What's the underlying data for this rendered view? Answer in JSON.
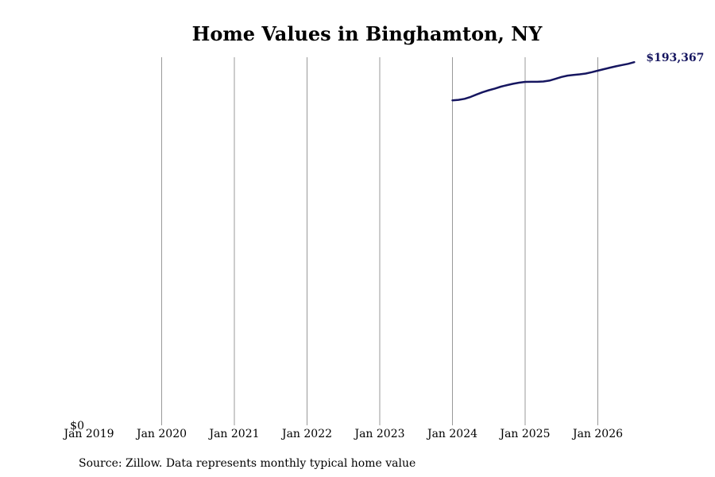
{
  "chart_data": {
    "type": "line",
    "title": "Home Values in Binghamton, NY",
    "xlabel": "",
    "ylabel": "",
    "x_ticks": [
      "Jan 2019",
      "Jan 2020",
      "Jan 2021",
      "Jan 2022",
      "Jan 2023",
      "Jan 2024",
      "Jan 2025",
      "Jan 2026"
    ],
    "y_ticks": [
      "$0"
    ],
    "ylim": [
      0,
      193367
    ],
    "grid": "vertical",
    "line_color": "#161660",
    "grid_color": "#999999",
    "series": [
      {
        "x": [
          "2024-01",
          "2024-02",
          "2024-03",
          "2024-04",
          "2024-05",
          "2024-06",
          "2024-07",
          "2024-08",
          "2024-09",
          "2024-10",
          "2024-11",
          "2024-12",
          "2025-01",
          "2025-02",
          "2025-03",
          "2025-04",
          "2025-05",
          "2025-06",
          "2025-07",
          "2025-08",
          "2025-09",
          "2025-10",
          "2025-11",
          "2025-12",
          "2026-01",
          "2026-02",
          "2026-03",
          "2026-04",
          "2026-05",
          "2026-06",
          "2026-07"
        ],
        "y": [
          171100,
          171350,
          171900,
          172900,
          174200,
          175400,
          176400,
          177300,
          178300,
          179100,
          179800,
          180400,
          180800,
          180850,
          180850,
          181000,
          181500,
          182400,
          183400,
          184100,
          184500,
          184800,
          185200,
          185900,
          186700,
          187500,
          188300,
          189000,
          189700,
          190300,
          191200
        ]
      }
    ],
    "end_label": "$193,367"
  },
  "footer": {
    "source": "Source: Zillow. Data represents monthly typical home value"
  }
}
